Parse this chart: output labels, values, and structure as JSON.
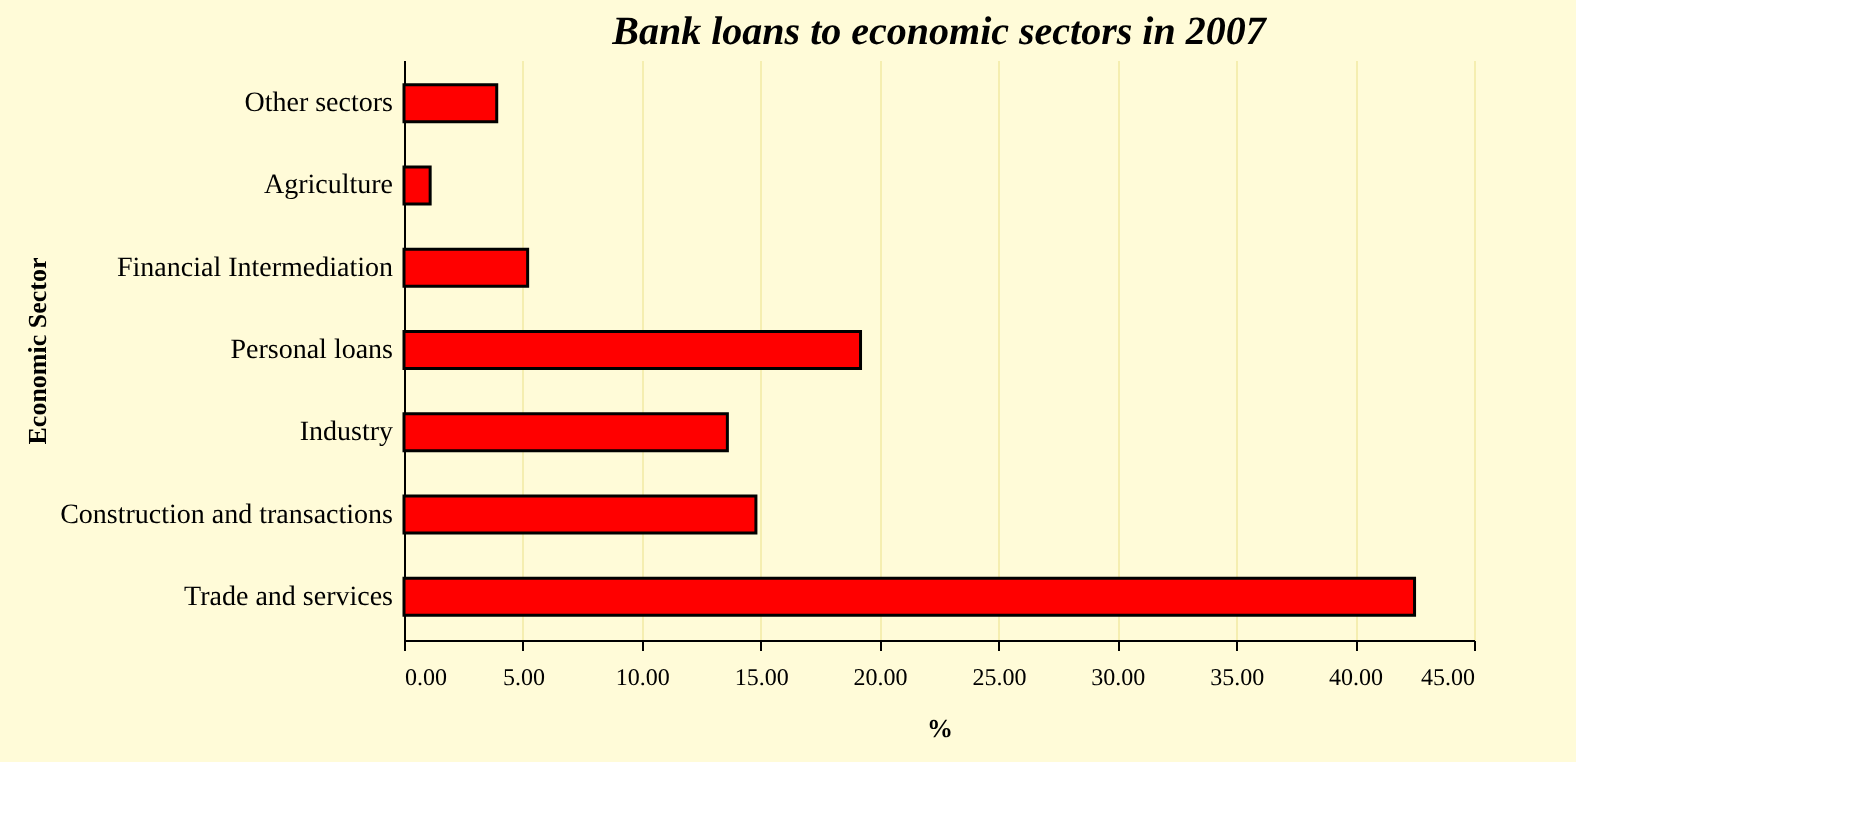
{
  "chart_data": {
    "type": "bar",
    "orientation": "horizontal",
    "title": "Bank loans to economic sectors in 2007",
    "xlabel": "%",
    "ylabel": "Economic Sector",
    "categories": [
      "Other sectors",
      "Agriculture",
      "Financial Intermediation",
      "Personal loans",
      "Industry",
      "Construction and transactions",
      "Trade and services"
    ],
    "values": [
      3.9,
      1.1,
      5.2,
      19.2,
      13.6,
      14.8,
      42.5
    ],
    "color": "#ff0000",
    "xlim": [
      0,
      45
    ],
    "xticks": [
      {
        "value": 0,
        "label": "0.00"
      },
      {
        "value": 5,
        "label": "5.00"
      },
      {
        "value": 10,
        "label": "10.00"
      },
      {
        "value": 15,
        "label": "15.00"
      },
      {
        "value": 20,
        "label": "20.00"
      },
      {
        "value": 25,
        "label": "25.00"
      },
      {
        "value": 30,
        "label": "30.00"
      },
      {
        "value": 35,
        "label": "35.00"
      },
      {
        "value": 40,
        "label": "40.00"
      },
      {
        "value": 45,
        "label": "45.00"
      }
    ],
    "grid": "x"
  }
}
